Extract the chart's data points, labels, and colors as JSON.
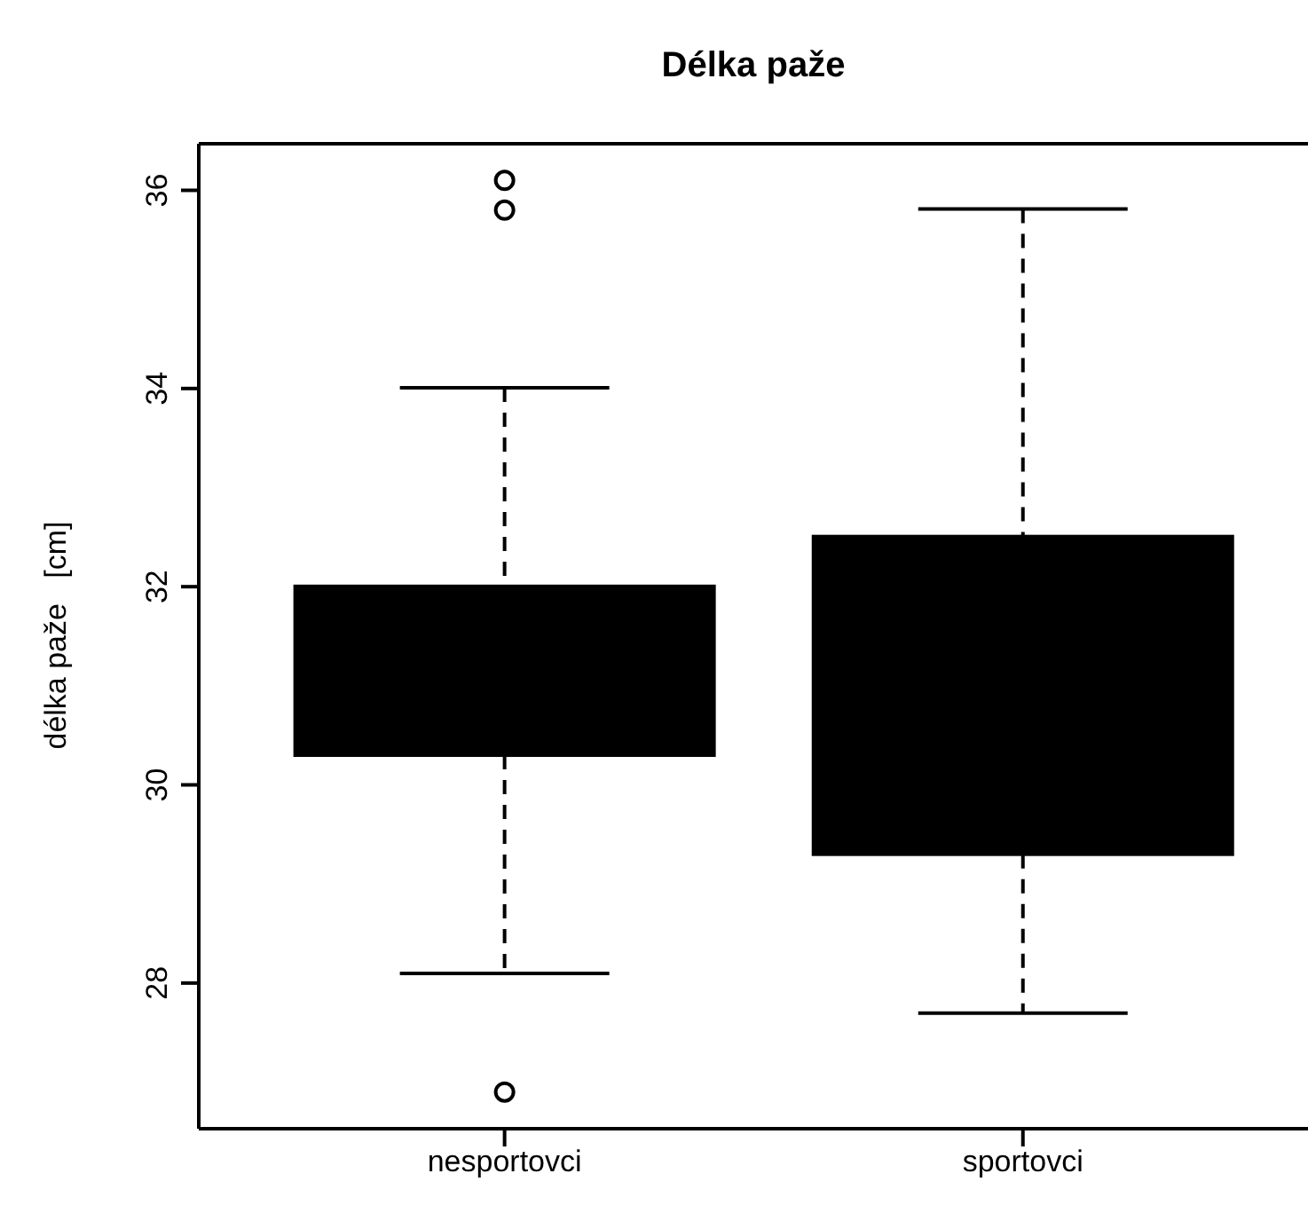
{
  "chart_data": {
    "type": "box",
    "title": "Délka paže",
    "ylabel": "délka paže   [cm]",
    "categories": [
      "nesportovci",
      "sportovci"
    ],
    "color": "#000000",
    "ylim": [
      26.53,
      36.47
    ],
    "yticks": [
      28,
      30,
      32,
      34,
      36
    ],
    "marker": "circle",
    "boxes": [
      {
        "low": 28.1,
        "q1": 30.3,
        "q3": 32.0,
        "high": 34.0,
        "outliers": [
          26.9,
          35.8,
          36.1
        ]
      },
      {
        "low": 27.7,
        "q1": 29.3,
        "q3": 32.5,
        "high": 35.8
      }
    ]
  }
}
